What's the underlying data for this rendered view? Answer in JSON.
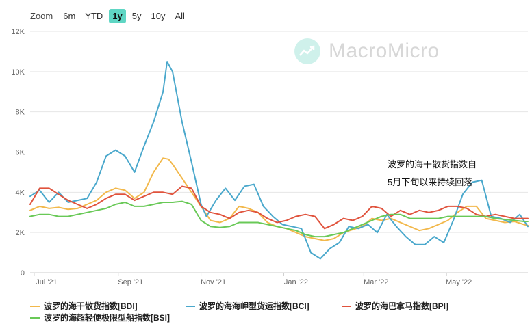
{
  "zoom": {
    "label": "Zoom",
    "buttons": [
      "6m",
      "YTD",
      "1y",
      "5y",
      "10y",
      "All"
    ],
    "active": "1y"
  },
  "watermark": {
    "text": "MacroMicro",
    "icon": "chart-line-icon"
  },
  "annotation": {
    "line1": "波罗的海干散货指数自",
    "line2": "5月下旬以来持续回落"
  },
  "colors": {
    "BDI": "#f2b84b",
    "BCI": "#4aa8cc",
    "BPI": "#e0533d",
    "BSI": "#69c957",
    "grid": "#e6e6e6",
    "axis": "#666666"
  },
  "chart_data": {
    "type": "line",
    "title": "",
    "xlabel": "",
    "ylabel": "",
    "ylim": [
      0,
      12000
    ],
    "yticks": [
      0,
      2000,
      4000,
      6000,
      8000,
      10000,
      12000
    ],
    "ytick_labels": [
      "0",
      "2K",
      "4K",
      "6K",
      "8K",
      "10K",
      "12K"
    ],
    "xlim": [
      "2021-06-28",
      "2022-06-30"
    ],
    "xticks": [
      {
        "date": "2021-07-01",
        "label": "Jul '21"
      },
      {
        "date": "2021-09-01",
        "label": "Sep '21"
      },
      {
        "date": "2021-11-01",
        "label": "Nov '21"
      },
      {
        "date": "2022-01-01",
        "label": "Jan '22"
      },
      {
        "date": "2022-03-01",
        "label": "Mar '22"
      },
      {
        "date": "2022-05-01",
        "label": "May '22"
      }
    ],
    "grid": true,
    "legend_position": "bottom",
    "series": [
      {
        "key": "BDI",
        "name": "波罗的海干散货指数[BDI]",
        "points": [
          [
            "2021-06-28",
            3100
          ],
          [
            "2021-07-05",
            3300
          ],
          [
            "2021-07-12",
            3200
          ],
          [
            "2021-07-19",
            3250
          ],
          [
            "2021-07-26",
            3150
          ],
          [
            "2021-08-02",
            3200
          ],
          [
            "2021-08-09",
            3400
          ],
          [
            "2021-08-16",
            3600
          ],
          [
            "2021-08-23",
            4000
          ],
          [
            "2021-08-30",
            4200
          ],
          [
            "2021-09-06",
            4100
          ],
          [
            "2021-09-13",
            3700
          ],
          [
            "2021-09-20",
            4000
          ],
          [
            "2021-09-27",
            5000
          ],
          [
            "2021-10-04",
            5700
          ],
          [
            "2021-10-08",
            5650
          ],
          [
            "2021-10-11",
            5400
          ],
          [
            "2021-10-18",
            4700
          ],
          [
            "2021-10-25",
            4000
          ],
          [
            "2021-11-01",
            3300
          ],
          [
            "2021-11-08",
            2600
          ],
          [
            "2021-11-15",
            2500
          ],
          [
            "2021-11-22",
            2700
          ],
          [
            "2021-11-29",
            3300
          ],
          [
            "2021-12-06",
            3200
          ],
          [
            "2021-12-13",
            3000
          ],
          [
            "2021-12-20",
            2500
          ],
          [
            "2021-12-27",
            2300
          ],
          [
            "2022-01-03",
            2200
          ],
          [
            "2022-01-10",
            2000
          ],
          [
            "2022-01-17",
            1800
          ],
          [
            "2022-01-24",
            1700
          ],
          [
            "2022-01-31",
            1600
          ],
          [
            "2022-02-07",
            1700
          ],
          [
            "2022-02-14",
            2000
          ],
          [
            "2022-02-21",
            2150
          ],
          [
            "2022-02-28",
            2300
          ],
          [
            "2022-03-07",
            2700
          ],
          [
            "2022-03-14",
            2600
          ],
          [
            "2022-03-21",
            2700
          ],
          [
            "2022-03-28",
            2500
          ],
          [
            "2022-04-04",
            2300
          ],
          [
            "2022-04-11",
            2100
          ],
          [
            "2022-04-18",
            2200
          ],
          [
            "2022-04-25",
            2400
          ],
          [
            "2022-05-02",
            2600
          ],
          [
            "2022-05-09",
            3000
          ],
          [
            "2022-05-16",
            3300
          ],
          [
            "2022-05-23",
            3300
          ],
          [
            "2022-05-30",
            2700
          ],
          [
            "2022-06-06",
            2600
          ],
          [
            "2022-06-13",
            2500
          ],
          [
            "2022-06-20",
            2550
          ],
          [
            "2022-06-27",
            2400
          ],
          [
            "2022-06-30",
            2350
          ]
        ]
      },
      {
        "key": "BCI",
        "name": "波罗的海海岬型货运指数[BCI]",
        "points": [
          [
            "2021-06-28",
            3800
          ],
          [
            "2021-07-05",
            4100
          ],
          [
            "2021-07-12",
            3500
          ],
          [
            "2021-07-19",
            4000
          ],
          [
            "2021-07-26",
            3500
          ],
          [
            "2021-08-02",
            3600
          ],
          [
            "2021-08-09",
            3700
          ],
          [
            "2021-08-16",
            4500
          ],
          [
            "2021-08-23",
            5800
          ],
          [
            "2021-08-30",
            6100
          ],
          [
            "2021-09-06",
            5800
          ],
          [
            "2021-09-13",
            5000
          ],
          [
            "2021-09-20",
            6300
          ],
          [
            "2021-09-27",
            7500
          ],
          [
            "2021-10-04",
            9000
          ],
          [
            "2021-10-07",
            10500
          ],
          [
            "2021-10-11",
            10000
          ],
          [
            "2021-10-18",
            7500
          ],
          [
            "2021-10-25",
            5500
          ],
          [
            "2021-11-01",
            3400
          ],
          [
            "2021-11-05",
            2800
          ],
          [
            "2021-11-12",
            3600
          ],
          [
            "2021-11-19",
            4200
          ],
          [
            "2021-11-26",
            3600
          ],
          [
            "2021-12-03",
            4300
          ],
          [
            "2021-12-10",
            4400
          ],
          [
            "2021-12-17",
            3300
          ],
          [
            "2021-12-24",
            2800
          ],
          [
            "2021-12-31",
            2400
          ],
          [
            "2022-01-07",
            2300
          ],
          [
            "2022-01-14",
            2200
          ],
          [
            "2022-01-21",
            1000
          ],
          [
            "2022-01-28",
            700
          ],
          [
            "2022-02-04",
            1200
          ],
          [
            "2022-02-11",
            1500
          ],
          [
            "2022-02-18",
            2300
          ],
          [
            "2022-02-25",
            2200
          ],
          [
            "2022-03-04",
            2400
          ],
          [
            "2022-03-11",
            2000
          ],
          [
            "2022-03-18",
            2900
          ],
          [
            "2022-03-25",
            2300
          ],
          [
            "2022-04-01",
            1800
          ],
          [
            "2022-04-08",
            1400
          ],
          [
            "2022-04-15",
            1400
          ],
          [
            "2022-04-22",
            1800
          ],
          [
            "2022-04-29",
            1500
          ],
          [
            "2022-05-06",
            2600
          ],
          [
            "2022-05-13",
            3900
          ],
          [
            "2022-05-20",
            4500
          ],
          [
            "2022-05-27",
            4600
          ],
          [
            "2022-06-03",
            2800
          ],
          [
            "2022-06-10",
            2700
          ],
          [
            "2022-06-17",
            2500
          ],
          [
            "2022-06-24",
            2900
          ],
          [
            "2022-06-30",
            2300
          ]
        ]
      },
      {
        "key": "BPI",
        "name": "波罗的海巴拿马指数[BPI]",
        "points": [
          [
            "2021-06-28",
            3400
          ],
          [
            "2021-07-05",
            4200
          ],
          [
            "2021-07-12",
            4200
          ],
          [
            "2021-07-19",
            3900
          ],
          [
            "2021-07-26",
            3600
          ],
          [
            "2021-08-02",
            3400
          ],
          [
            "2021-08-09",
            3200
          ],
          [
            "2021-08-16",
            3400
          ],
          [
            "2021-08-23",
            3700
          ],
          [
            "2021-08-30",
            3900
          ],
          [
            "2021-09-06",
            3900
          ],
          [
            "2021-09-13",
            3600
          ],
          [
            "2021-09-20",
            3800
          ],
          [
            "2021-09-27",
            4000
          ],
          [
            "2021-10-04",
            4000
          ],
          [
            "2021-10-11",
            3900
          ],
          [
            "2021-10-18",
            4300
          ],
          [
            "2021-10-25",
            4200
          ],
          [
            "2021-11-01",
            3300
          ],
          [
            "2021-11-08",
            3000
          ],
          [
            "2021-11-15",
            2900
          ],
          [
            "2021-11-22",
            2700
          ],
          [
            "2021-11-29",
            3000
          ],
          [
            "2021-12-06",
            3100
          ],
          [
            "2021-12-13",
            3000
          ],
          [
            "2021-12-20",
            2700
          ],
          [
            "2021-12-27",
            2500
          ],
          [
            "2022-01-03",
            2600
          ],
          [
            "2022-01-10",
            2800
          ],
          [
            "2022-01-17",
            2900
          ],
          [
            "2022-01-24",
            2800
          ],
          [
            "2022-01-31",
            2200
          ],
          [
            "2022-02-07",
            2400
          ],
          [
            "2022-02-14",
            2700
          ],
          [
            "2022-02-21",
            2600
          ],
          [
            "2022-02-28",
            2800
          ],
          [
            "2022-03-07",
            3300
          ],
          [
            "2022-03-14",
            3200
          ],
          [
            "2022-03-21",
            2800
          ],
          [
            "2022-03-28",
            3100
          ],
          [
            "2022-04-04",
            2900
          ],
          [
            "2022-04-11",
            3100
          ],
          [
            "2022-04-18",
            3000
          ],
          [
            "2022-04-25",
            3100
          ],
          [
            "2022-05-02",
            3300
          ],
          [
            "2022-05-09",
            3300
          ],
          [
            "2022-05-16",
            3200
          ],
          [
            "2022-05-23",
            2900
          ],
          [
            "2022-05-30",
            2800
          ],
          [
            "2022-06-06",
            2900
          ],
          [
            "2022-06-13",
            2800
          ],
          [
            "2022-06-20",
            2700
          ],
          [
            "2022-06-27",
            2700
          ],
          [
            "2022-06-30",
            2700
          ]
        ]
      },
      {
        "key": "BSI",
        "name": "波罗的海超轻便极限型船指数[BSI]",
        "points": [
          [
            "2021-06-28",
            2800
          ],
          [
            "2021-07-05",
            2900
          ],
          [
            "2021-07-12",
            2900
          ],
          [
            "2021-07-19",
            2800
          ],
          [
            "2021-07-26",
            2800
          ],
          [
            "2021-08-02",
            2900
          ],
          [
            "2021-08-09",
            3000
          ],
          [
            "2021-08-16",
            3100
          ],
          [
            "2021-08-23",
            3200
          ],
          [
            "2021-08-30",
            3400
          ],
          [
            "2021-09-06",
            3500
          ],
          [
            "2021-09-13",
            3300
          ],
          [
            "2021-09-20",
            3300
          ],
          [
            "2021-09-27",
            3400
          ],
          [
            "2021-10-04",
            3500
          ],
          [
            "2021-10-11",
            3500
          ],
          [
            "2021-10-18",
            3550
          ],
          [
            "2021-10-25",
            3400
          ],
          [
            "2021-11-01",
            2600
          ],
          [
            "2021-11-08",
            2300
          ],
          [
            "2021-11-15",
            2250
          ],
          [
            "2021-11-22",
            2300
          ],
          [
            "2021-11-29",
            2500
          ],
          [
            "2021-12-06",
            2500
          ],
          [
            "2021-12-13",
            2500
          ],
          [
            "2021-12-20",
            2400
          ],
          [
            "2021-12-27",
            2300
          ],
          [
            "2022-01-03",
            2200
          ],
          [
            "2022-01-10",
            2100
          ],
          [
            "2022-01-17",
            1900
          ],
          [
            "2022-01-24",
            1800
          ],
          [
            "2022-01-31",
            1800
          ],
          [
            "2022-02-07",
            1900
          ],
          [
            "2022-02-14",
            2000
          ],
          [
            "2022-02-21",
            2200
          ],
          [
            "2022-02-28",
            2400
          ],
          [
            "2022-03-07",
            2600
          ],
          [
            "2022-03-14",
            2800
          ],
          [
            "2022-03-21",
            2900
          ],
          [
            "2022-03-28",
            2900
          ],
          [
            "2022-04-04",
            2700
          ],
          [
            "2022-04-11",
            2700
          ],
          [
            "2022-04-18",
            2700
          ],
          [
            "2022-04-25",
            2700
          ],
          [
            "2022-05-02",
            2800
          ],
          [
            "2022-05-09",
            2800
          ],
          [
            "2022-05-16",
            2800
          ],
          [
            "2022-05-23",
            2800
          ],
          [
            "2022-05-30",
            2800
          ],
          [
            "2022-06-06",
            2700
          ],
          [
            "2022-06-13",
            2650
          ],
          [
            "2022-06-20",
            2600
          ],
          [
            "2022-06-27",
            2550
          ],
          [
            "2022-06-30",
            2550
          ]
        ]
      }
    ]
  }
}
